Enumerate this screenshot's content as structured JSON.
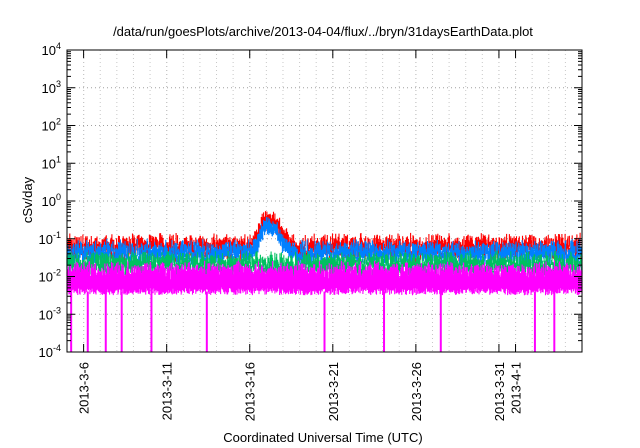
{
  "chart_data": {
    "type": "line",
    "title": "/data/run/goesPlots/archive/2013-04-04/flux/../bryn/31daysEarthData.plot",
    "xlabel": "Coordinated Universal Time (UTC)",
    "ylabel": "cSv/day",
    "y_scale": "log",
    "ylim": [
      0.0001,
      10000
    ],
    "xlim": [
      "2013-03-05",
      "2013-04-05"
    ],
    "grid": true,
    "y_ticks": [
      {
        "base": "10",
        "exp": "-4",
        "value": 0.0001
      },
      {
        "base": "10",
        "exp": "-3",
        "value": 0.001
      },
      {
        "base": "10",
        "exp": "-2",
        "value": 0.01
      },
      {
        "base": "10",
        "exp": "-1",
        "value": 0.1
      },
      {
        "base": "10",
        "exp": "0",
        "value": 1
      },
      {
        "base": "10",
        "exp": "1",
        "value": 10
      },
      {
        "base": "10",
        "exp": "2",
        "value": 100
      },
      {
        "base": "10",
        "exp": "3",
        "value": 1000
      },
      {
        "base": "10",
        "exp": "4",
        "value": 10000
      }
    ],
    "x_ticks": [
      "2013-3-6",
      "2013-3-11",
      "2013-3-16",
      "2013-3-21",
      "2013-3-26",
      "2013-3-31",
      "2013-4-1"
    ],
    "x_tick_dates": [
      "2013-03-06",
      "2013-03-11",
      "2013-03-16",
      "2013-03-21",
      "2013-03-26",
      "2013-03-31",
      "2013-04-01"
    ],
    "series": [
      {
        "color": "#ff0000",
        "baseline": 0.065,
        "x": [
          "2013-03-16T12:00",
          "2013-03-17",
          "2013-03-17T12:00",
          "2013-03-18",
          "2013-03-18T12:00"
        ],
        "values": [
          0.12,
          0.38,
          0.32,
          0.14,
          0.07
        ]
      },
      {
        "color": "#0080ff",
        "baseline": 0.045,
        "x": [
          "2013-03-16T12:00",
          "2013-03-17",
          "2013-03-17T12:00",
          "2013-03-18",
          "2013-03-18T12:00"
        ],
        "values": [
          0.08,
          0.26,
          0.2,
          0.09,
          0.05
        ]
      },
      {
        "color": "#00c060",
        "baseline": 0.022
      },
      {
        "color": "#ff00ff",
        "baseline": 0.012,
        "floor": 0.004,
        "dropout_x": [
          "2013-03-05T06:00",
          "2013-03-06T06:00",
          "2013-03-07T08:00",
          "2013-03-08T07:00",
          "2013-03-10T02:00",
          "2013-03-13T10:00",
          "2013-03-20T12:00",
          "2013-03-24T02:00",
          "2013-03-27T12:00",
          "2013-04-02T04:00",
          "2013-04-03T08:00"
        ]
      }
    ]
  }
}
